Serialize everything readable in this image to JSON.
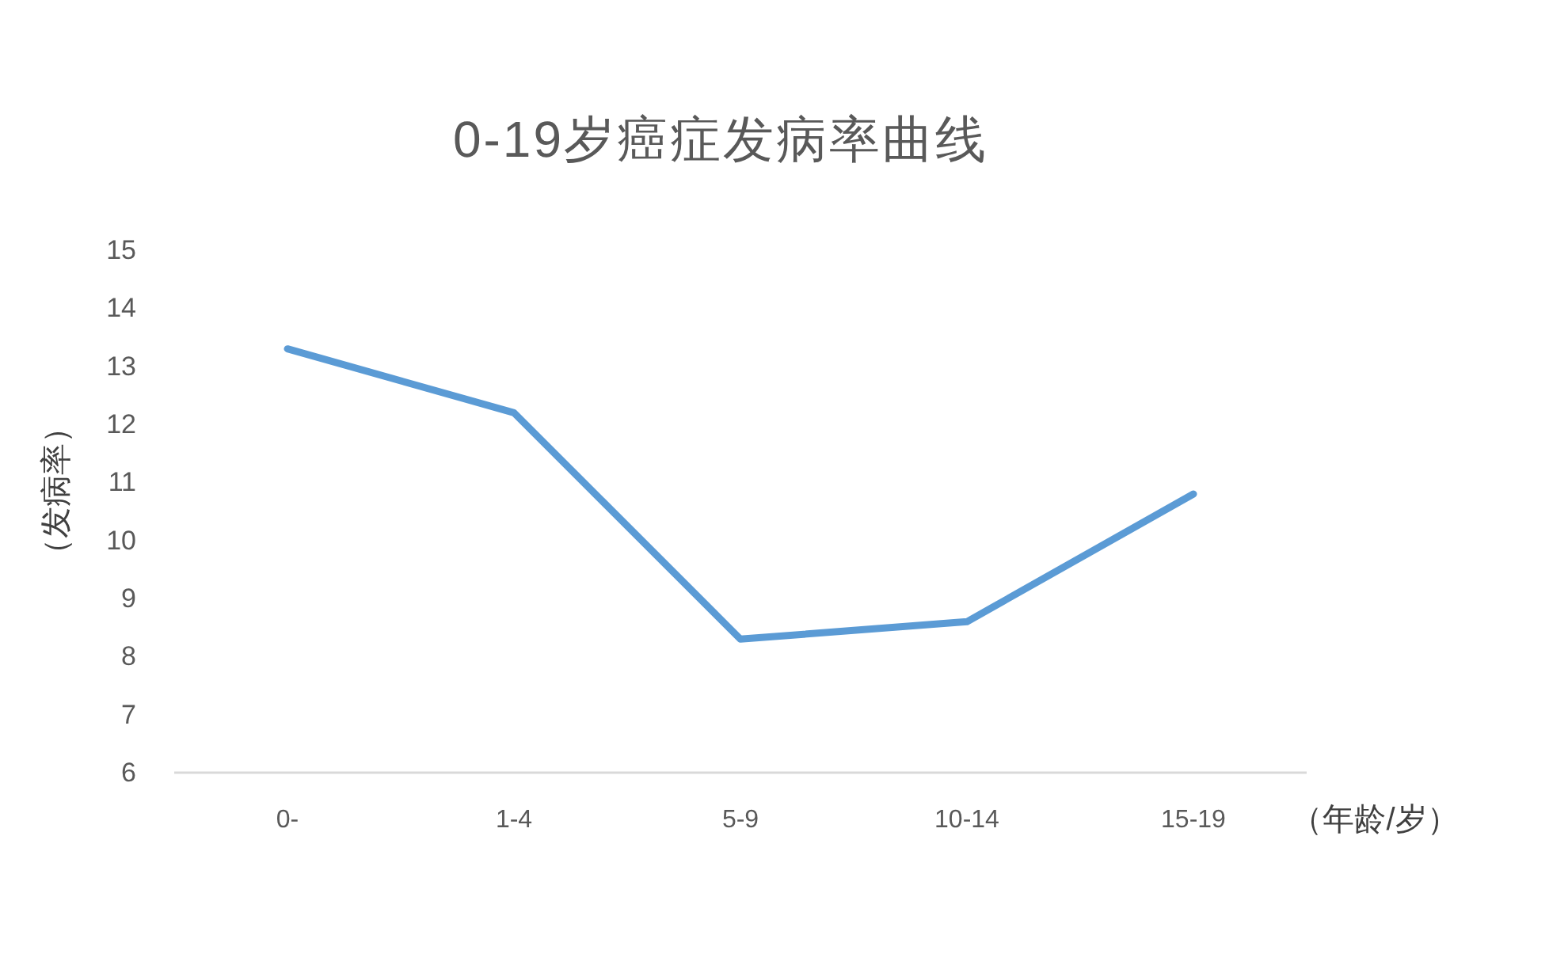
{
  "chart_data": {
    "type": "line",
    "title": "0-19岁癌症发病率曲线",
    "xlabel": "（年龄/岁）",
    "ylabel": "（发病率）",
    "categories": [
      "0-",
      "1-4",
      "5-9",
      "10-14",
      "15-19"
    ],
    "series": [
      {
        "color": "#5b9bd5",
        "values": [
          13.3,
          12.2,
          8.3,
          8.6,
          10.8
        ]
      }
    ],
    "ylim": [
      6,
      15
    ],
    "yticks": [
      6,
      7,
      8,
      9,
      10,
      11,
      12,
      13,
      14,
      15
    ]
  }
}
